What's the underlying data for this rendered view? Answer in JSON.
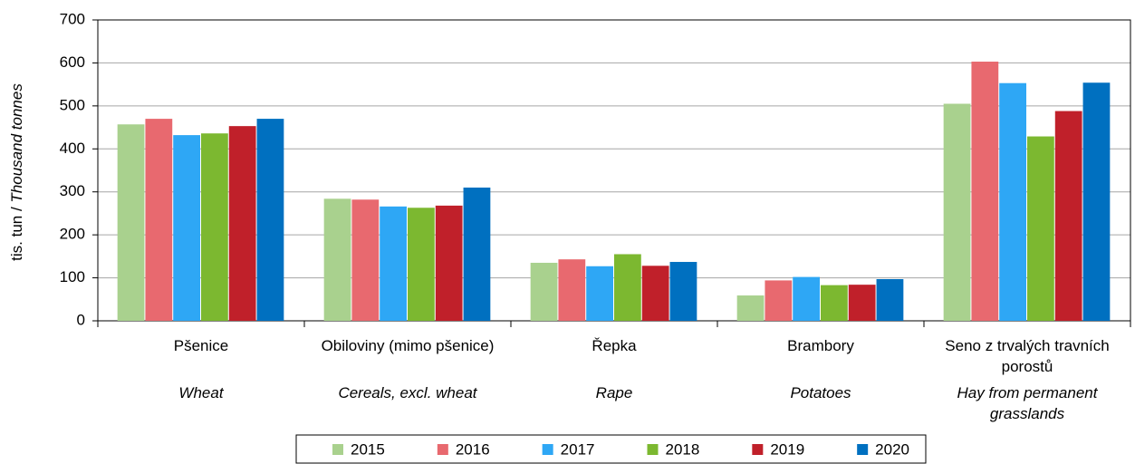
{
  "chart_data": {
    "type": "bar",
    "ylabel": [
      "tis. tun /",
      "Thousand tonnes"
    ],
    "categories": [
      "Pšenice",
      "Obiloviny (mimo pšenice)",
      "Řepka",
      "Brambory",
      "Seno z trvalých travních porostů"
    ],
    "categories_en": [
      "Wheat",
      "Cereals, excl. wheat",
      "Rape",
      "Potatoes",
      "Hay from permanent grasslands"
    ],
    "series": [
      {
        "name": "2015",
        "color": "#a9d18e",
        "values": [
          457,
          284,
          135,
          59,
          505
        ]
      },
      {
        "name": "2016",
        "color": "#e8696f",
        "values": [
          470,
          282,
          143,
          94,
          603
        ]
      },
      {
        "name": "2017",
        "color": "#2ea7f5",
        "values": [
          432,
          266,
          127,
          102,
          553
        ]
      },
      {
        "name": "2018",
        "color": "#7cb830",
        "values": [
          436,
          263,
          155,
          83,
          429
        ]
      },
      {
        "name": "2019",
        "color": "#c0202a",
        "values": [
          453,
          268,
          128,
          84,
          488
        ]
      },
      {
        "name": "2020",
        "color": "#0070c0",
        "values": [
          470,
          310,
          137,
          97,
          554
        ]
      }
    ],
    "ylim": [
      0,
      700
    ],
    "yticks": [
      0,
      100,
      200,
      300,
      400,
      500,
      600,
      700
    ],
    "grid": true
  }
}
